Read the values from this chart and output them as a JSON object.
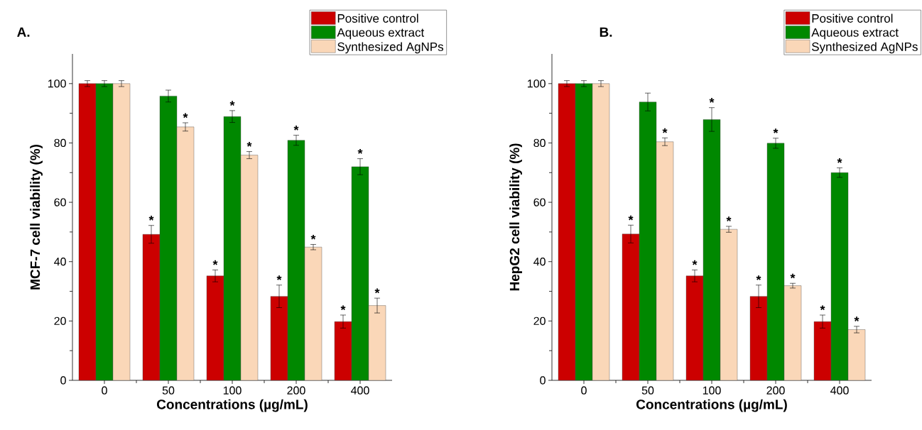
{
  "chart_data": [
    {
      "type": "bar",
      "title": "A.",
      "xlabel": "Concentrations (µg/mL)",
      "ylabel": "MCF-7 cell viability (%)",
      "categories": [
        "0",
        "50",
        "100",
        "200",
        "400"
      ],
      "series": [
        {
          "name": "Positive control",
          "color": "#cc0000",
          "values": [
            100,
            49.2,
            35.2,
            28.3,
            19.8
          ],
          "errors": [
            1,
            3,
            2,
            3.8,
            2.2
          ],
          "value_labels": [
            null,
            "*",
            "*",
            "*",
            "*"
          ]
        },
        {
          "name": "Aqueous extract",
          "color": "#008800",
          "values": [
            100,
            95.8,
            88.9,
            80.9,
            72
          ],
          "errors": [
            1,
            2,
            2,
            1.7,
            2.7
          ],
          "value_labels": [
            null,
            null,
            "*",
            "*",
            "*"
          ]
        },
        {
          "name": "Synthesized AgNPs",
          "color": "#fad7b8",
          "values": [
            100,
            85.4,
            75.9,
            44.9,
            25.2
          ],
          "errors": [
            1,
            1.4,
            1.2,
            0.9,
            2.5
          ],
          "value_labels": [
            null,
            "*",
            "*",
            "*",
            "*"
          ]
        }
      ],
      "ylim": [
        0,
        110
      ],
      "yticks": [
        0,
        20,
        40,
        60,
        80,
        100
      ],
      "legend": "top right"
    },
    {
      "type": "bar",
      "title": "B.",
      "xlabel": "Concentrations (µg/mL)",
      "ylabel": "HepG2 cell viability (%)",
      "categories": [
        "0",
        "50",
        "100",
        "200",
        "400"
      ],
      "series": [
        {
          "name": "Positive control",
          "color": "#cc0000",
          "values": [
            100,
            49.3,
            35.2,
            28.3,
            19.8
          ],
          "errors": [
            1,
            3,
            2,
            3.8,
            2.2
          ],
          "value_labels": [
            null,
            "*",
            "*",
            "*",
            "*"
          ]
        },
        {
          "name": "Aqueous extract",
          "color": "#008800",
          "values": [
            100,
            93.8,
            87.9,
            79.9,
            70
          ],
          "errors": [
            1,
            3,
            4,
            1.7,
            1.6
          ],
          "value_labels": [
            null,
            null,
            "*",
            "*",
            "*"
          ]
        },
        {
          "name": "Synthesized AgNPs",
          "color": "#fad7b8",
          "values": [
            100,
            80.4,
            50.9,
            31.9,
            17.1
          ],
          "errors": [
            1,
            1.3,
            1,
            0.8,
            1.1
          ],
          "value_labels": [
            null,
            "*",
            "*",
            "*",
            "*"
          ]
        }
      ],
      "ylim": [
        0,
        110
      ],
      "yticks": [
        0,
        20,
        40,
        60,
        80,
        100
      ],
      "legend": "top right"
    }
  ]
}
